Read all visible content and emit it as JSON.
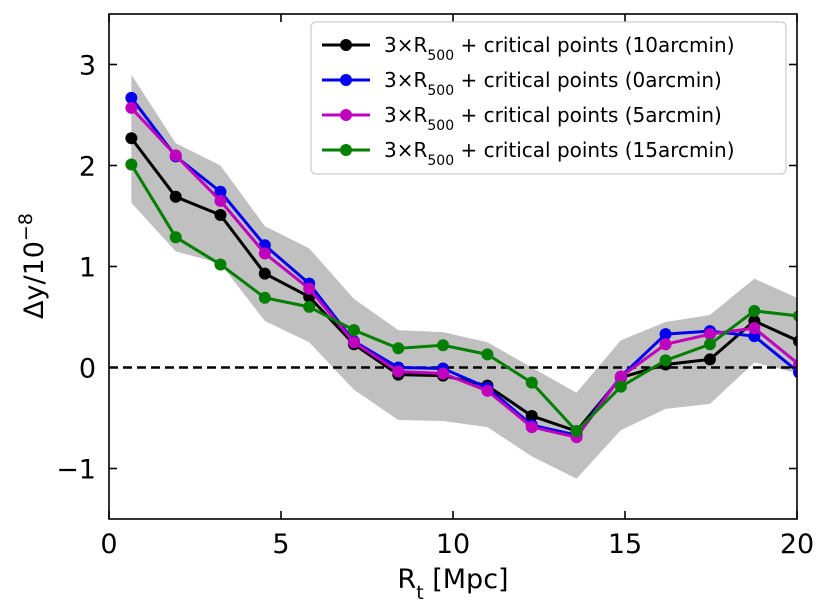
{
  "chart_data": {
    "type": "line",
    "xlabel": "R_t [Mpc]",
    "ylabel": "Δy/10^−8",
    "xlim": [
      0,
      20
    ],
    "ylim": [
      -1.5,
      3.5
    ],
    "grid": false,
    "legend_position": "top-right",
    "x_ticks": [
      {
        "value": 0,
        "label": "0"
      },
      {
        "value": 5,
        "label": "5"
      },
      {
        "value": 10,
        "label": "10"
      },
      {
        "value": 15,
        "label": "15"
      },
      {
        "value": 20,
        "label": "20"
      }
    ],
    "y_ticks": [
      {
        "value": -1,
        "label": "−1"
      },
      {
        "value": 0,
        "label": "0"
      },
      {
        "value": 1,
        "label": "1"
      },
      {
        "value": 2,
        "label": "2"
      },
      {
        "value": 3,
        "label": "3"
      }
    ],
    "reference_line": {
      "y": 0,
      "style": "dashed",
      "color": "#000000"
    },
    "x": [
      0.65,
      1.94,
      3.24,
      4.53,
      5.82,
      7.12,
      8.41,
      9.71,
      11.0,
      12.29,
      13.59,
      14.88,
      16.18,
      17.47,
      18.76,
      20.06
    ],
    "band": {
      "color": "#c0c0c0",
      "upper": [
        2.9,
        2.22,
        2.0,
        1.4,
        1.18,
        0.68,
        0.37,
        0.35,
        0.25,
        0.0,
        -0.25,
        0.27,
        0.45,
        0.52,
        0.88,
        0.68
      ],
      "lower": [
        1.63,
        1.15,
        1.03,
        0.46,
        0.25,
        -0.22,
        -0.52,
        -0.53,
        -0.59,
        -0.88,
        -1.1,
        -0.62,
        -0.41,
        -0.36,
        0.05,
        -0.06
      ]
    },
    "series": [
      {
        "name": "3×R500 + critical points (10arcmin)",
        "label_main": "3×R",
        "label_sub": "500",
        "label_rest": " + critical points (10arcmin)",
        "color": "#000000",
        "values": [
          2.27,
          1.69,
          1.51,
          0.93,
          0.7,
          0.23,
          -0.07,
          -0.08,
          -0.18,
          -0.48,
          -0.63,
          -0.1,
          0.03,
          0.08,
          0.46,
          0.26
        ]
      },
      {
        "name": "3×R500 + critical points (0arcmin)",
        "label_main": "3×R",
        "label_sub": "500",
        "label_rest": " + critical points (0arcmin)",
        "color": "#0000ee",
        "values": [
          2.67,
          2.09,
          1.74,
          1.21,
          0.83,
          0.26,
          0.0,
          -0.01,
          -0.2,
          -0.57,
          -0.67,
          -0.09,
          0.33,
          0.36,
          0.31,
          -0.05
        ]
      },
      {
        "name": "3×R500 + critical points (5arcmin)",
        "label_main": "3×R",
        "label_sub": "500",
        "label_rest": " + critical points (5arcmin)",
        "color": "#bf00bf",
        "values": [
          2.57,
          2.1,
          1.65,
          1.13,
          0.78,
          0.25,
          -0.04,
          -0.06,
          -0.23,
          -0.59,
          -0.69,
          -0.09,
          0.23,
          0.33,
          0.39,
          0.03
        ]
      },
      {
        "name": "3×R500 + critical points (15arcmin)",
        "label_main": "3×R",
        "label_sub": "500",
        "label_rest": " + critical points (15arcmin)",
        "color": "#007f00",
        "values": [
          2.01,
          1.29,
          1.02,
          0.69,
          0.6,
          0.37,
          0.19,
          0.22,
          0.13,
          -0.15,
          -0.63,
          -0.19,
          0.07,
          0.23,
          0.56,
          0.51
        ]
      }
    ]
  }
}
